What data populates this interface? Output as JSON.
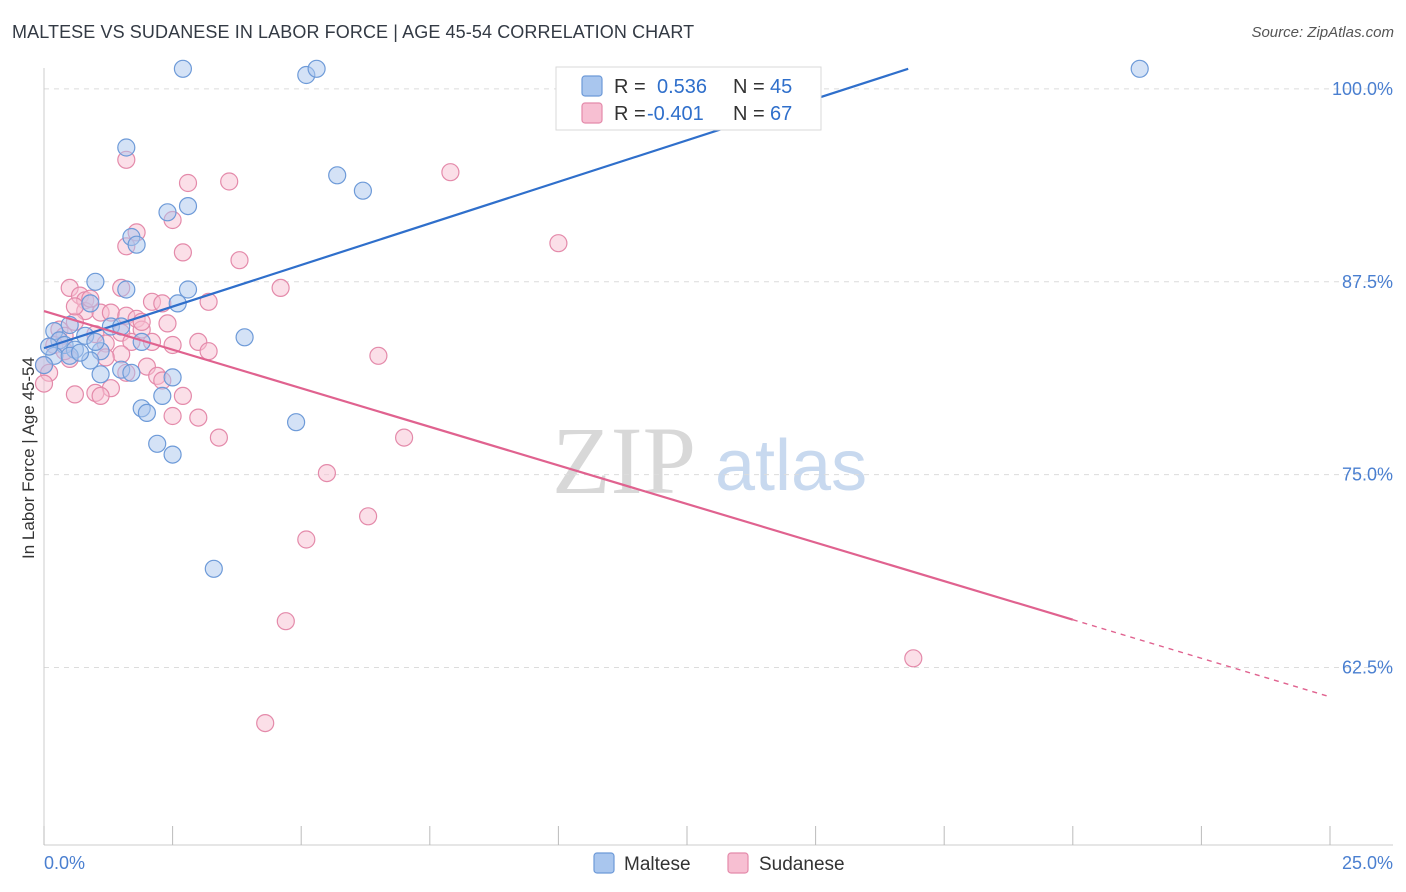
{
  "header": {
    "title": "MALTESE VS SUDANESE IN LABOR FORCE | AGE 45-54 CORRELATION CHART",
    "source": "Source: ZipAtlas.com"
  },
  "watermark": {
    "zip": "ZIP",
    "atlas": "atlas"
  },
  "legend": {
    "maltese": {
      "r_label": "R =",
      "r_value": "0.536",
      "n_label": "N =",
      "n_value": "45"
    },
    "sudanese": {
      "r_label": "R =",
      "r_value": "-0.401",
      "n_label": "N =",
      "n_value": "67"
    }
  },
  "colors": {
    "maltese_fill": "#a9c6ee",
    "maltese_stroke": "#6d9ad8",
    "maltese_line": "#2f6fcb",
    "sudanese_fill": "#f7bfd2",
    "sudanese_stroke": "#e48aaa",
    "sudanese_line": "#e0628f",
    "value_text": "#2f6fcb",
    "grid": "#dcdcdc"
  },
  "chart_data": {
    "type": "scatter",
    "title": "MALTESE VS SUDANESE IN LABOR FORCE | AGE 45-54 CORRELATION CHART",
    "xlabel": "",
    "ylabel": "In Labor Force | Age 45-54",
    "xlim": [
      0,
      25
    ],
    "ylim": [
      51,
      102
    ],
    "x_tick_labels": [
      "0.0%",
      "25.0%"
    ],
    "y_ticks": [
      62.5,
      75.0,
      87.5,
      100.0
    ],
    "y_tick_labels": [
      "62.5%",
      "75.0%",
      "87.5%",
      "100.0%"
    ],
    "grid": true,
    "legend_position": "top-center",
    "series": [
      {
        "name": "Maltese",
        "r": 0.536,
        "n": 45,
        "trend": {
          "x0": 0.0,
          "y0": 83.2,
          "x1": 16.8,
          "y1": 101.3,
          "dashed_to": null
        },
        "points": [
          [
            2.7,
            101.3
          ],
          [
            5.1,
            100.9
          ],
          [
            5.3,
            101.3
          ],
          [
            21.3,
            101.3
          ],
          [
            1.6,
            96.2
          ],
          [
            5.7,
            94.4
          ],
          [
            6.2,
            93.4
          ],
          [
            2.8,
            92.4
          ],
          [
            2.4,
            92.0
          ],
          [
            1.7,
            90.4
          ],
          [
            1.8,
            89.9
          ],
          [
            1.0,
            87.5
          ],
          [
            1.6,
            87.0
          ],
          [
            2.8,
            87.0
          ],
          [
            0.9,
            86.1
          ],
          [
            2.6,
            86.1
          ],
          [
            0.5,
            84.7
          ],
          [
            1.3,
            84.6
          ],
          [
            1.5,
            84.6
          ],
          [
            0.2,
            84.3
          ],
          [
            0.8,
            84.0
          ],
          [
            0.3,
            83.7
          ],
          [
            0.4,
            83.4
          ],
          [
            3.9,
            83.9
          ],
          [
            1.9,
            83.6
          ],
          [
            0.6,
            83.1
          ],
          [
            1.1,
            83.0
          ],
          [
            0.2,
            82.7
          ],
          [
            0.5,
            82.7
          ],
          [
            0.9,
            82.4
          ],
          [
            0.0,
            82.1
          ],
          [
            1.5,
            81.8
          ],
          [
            1.7,
            81.6
          ],
          [
            1.1,
            81.5
          ],
          [
            2.5,
            81.3
          ],
          [
            2.3,
            80.1
          ],
          [
            1.9,
            79.3
          ],
          [
            2.0,
            79.0
          ],
          [
            4.9,
            78.4
          ],
          [
            2.2,
            77.0
          ],
          [
            2.5,
            76.3
          ],
          [
            3.3,
            68.9
          ],
          [
            0.1,
            83.3
          ],
          [
            1.0,
            83.6
          ],
          [
            0.7,
            82.9
          ]
        ]
      },
      {
        "name": "Sudanese",
        "r": -0.401,
        "n": 67,
        "trend": {
          "x0": 0.0,
          "y0": 85.6,
          "x1": 20.0,
          "y1": 65.6,
          "dashed_to": [
            25.0,
            60.6
          ]
        },
        "points": [
          [
            1.6,
            95.4
          ],
          [
            7.9,
            94.6
          ],
          [
            2.8,
            93.9
          ],
          [
            3.6,
            94.0
          ],
          [
            2.5,
            91.5
          ],
          [
            1.8,
            90.7
          ],
          [
            1.6,
            89.8
          ],
          [
            10.0,
            90.0
          ],
          [
            2.7,
            89.4
          ],
          [
            3.8,
            88.9
          ],
          [
            0.5,
            87.1
          ],
          [
            4.6,
            87.1
          ],
          [
            1.5,
            87.1
          ],
          [
            0.7,
            86.6
          ],
          [
            0.8,
            86.3
          ],
          [
            2.1,
            86.2
          ],
          [
            2.3,
            86.1
          ],
          [
            3.2,
            86.2
          ],
          [
            0.8,
            85.6
          ],
          [
            1.1,
            85.5
          ],
          [
            1.3,
            85.5
          ],
          [
            1.6,
            85.3
          ],
          [
            1.8,
            85.1
          ],
          [
            0.6,
            84.9
          ],
          [
            0.3,
            84.4
          ],
          [
            1.5,
            84.2
          ],
          [
            0.4,
            84.0
          ],
          [
            1.0,
            84.1
          ],
          [
            3.0,
            83.6
          ],
          [
            1.2,
            83.5
          ],
          [
            1.7,
            83.6
          ],
          [
            2.1,
            83.6
          ],
          [
            0.2,
            83.4
          ],
          [
            3.2,
            83.0
          ],
          [
            1.5,
            82.8
          ],
          [
            6.5,
            82.7
          ],
          [
            0.5,
            82.5
          ],
          [
            0.0,
            82.1
          ],
          [
            2.0,
            82.0
          ],
          [
            0.1,
            81.6
          ],
          [
            1.6,
            81.6
          ],
          [
            2.2,
            81.4
          ],
          [
            2.3,
            81.1
          ],
          [
            1.3,
            80.6
          ],
          [
            1.0,
            80.3
          ],
          [
            0.6,
            80.2
          ],
          [
            1.1,
            80.1
          ],
          [
            2.7,
            80.1
          ],
          [
            0.0,
            80.9
          ],
          [
            2.5,
            78.8
          ],
          [
            3.0,
            78.7
          ],
          [
            3.4,
            77.4
          ],
          [
            7.0,
            77.4
          ],
          [
            5.5,
            75.1
          ],
          [
            6.3,
            72.3
          ],
          [
            5.1,
            70.8
          ],
          [
            4.7,
            65.5
          ],
          [
            16.9,
            63.1
          ],
          [
            4.3,
            58.9
          ],
          [
            1.9,
            84.4
          ],
          [
            0.9,
            86.4
          ],
          [
            2.5,
            83.4
          ],
          [
            1.2,
            82.6
          ],
          [
            0.4,
            83.0
          ],
          [
            2.4,
            84.8
          ],
          [
            1.9,
            84.9
          ],
          [
            0.6,
            85.9
          ]
        ]
      }
    ]
  },
  "bottom_legend": {
    "maltese": "Maltese",
    "sudanese": "Sudanese"
  }
}
